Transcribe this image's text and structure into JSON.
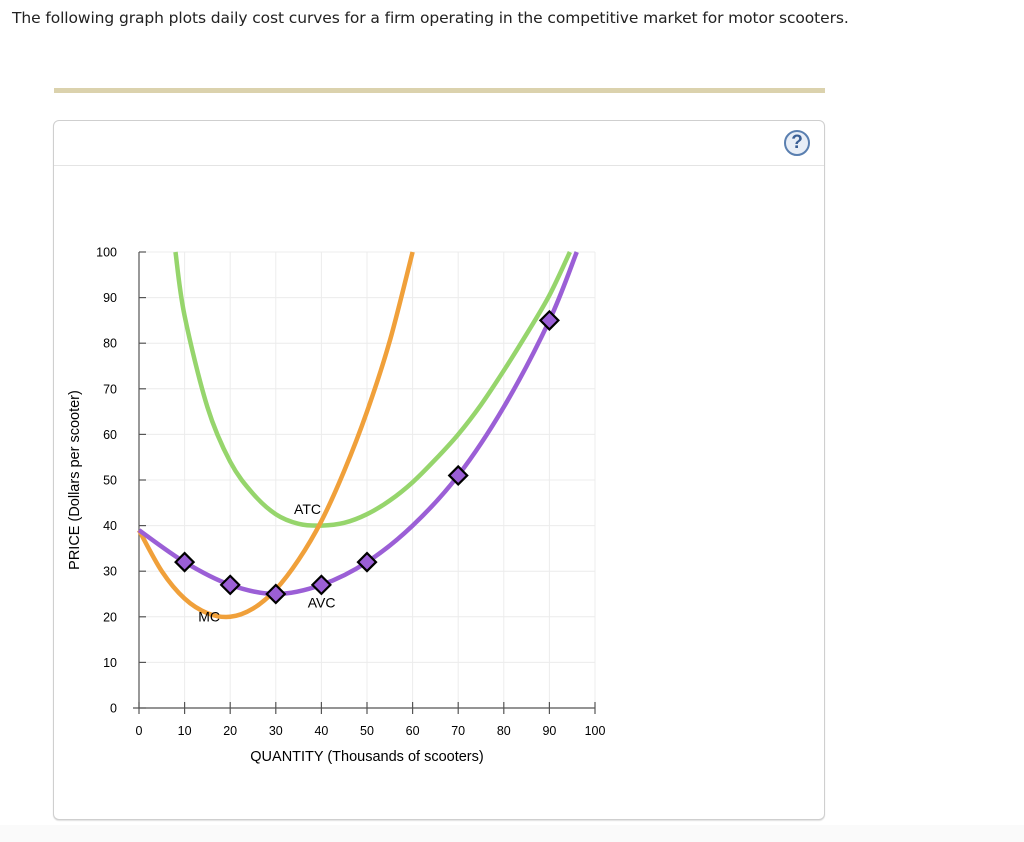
{
  "intro_text": "The following graph plots daily cost curves for a firm operating in the competitive market for motor scooters.",
  "help_button": {
    "label": "?",
    "icon": "question-circle-icon"
  },
  "colors": {
    "divider": "#dbd2ad",
    "atc": "#96d56c",
    "mc": "#f0a03a",
    "avc": "#9b5fd6",
    "marker_fill": "#9b5fd6",
    "marker_stroke": "#000000",
    "grid": "#ececec",
    "axis": "#555555"
  },
  "chart_data": {
    "type": "line",
    "title": "",
    "xlabel": "QUANTITY (Thousands of scooters)",
    "ylabel": "PRICE (Dollars per scooter)",
    "xlim": [
      0,
      100
    ],
    "ylim": [
      0,
      100
    ],
    "xticks": [
      0,
      10,
      20,
      30,
      40,
      50,
      60,
      70,
      80,
      90,
      100
    ],
    "yticks": [
      0,
      10,
      20,
      30,
      40,
      50,
      60,
      70,
      80,
      90,
      100
    ],
    "grid": true,
    "series": [
      {
        "name": "ATC",
        "label_pos": {
          "x": 34,
          "y": 42.5
        },
        "points": [
          [
            8,
            100
          ],
          [
            10,
            86
          ],
          [
            15,
            66
          ],
          [
            20,
            54
          ],
          [
            25,
            47
          ],
          [
            30,
            42.5
          ],
          [
            35,
            40.4
          ],
          [
            40,
            40
          ],
          [
            45,
            40.6
          ],
          [
            50,
            42.5
          ],
          [
            55,
            45.5
          ],
          [
            60,
            49.5
          ],
          [
            65,
            54.5
          ],
          [
            70,
            60
          ],
          [
            75,
            66.5
          ],
          [
            80,
            74
          ],
          [
            85,
            82
          ],
          [
            90,
            90.5
          ],
          [
            94.5,
            100
          ]
        ]
      },
      {
        "name": "MC",
        "label_pos": {
          "x": 13,
          "y": 19
        },
        "points": [
          [
            0,
            39
          ],
          [
            5,
            30
          ],
          [
            10,
            24
          ],
          [
            15,
            20.8
          ],
          [
            20,
            20
          ],
          [
            25,
            21.8
          ],
          [
            30,
            26
          ],
          [
            35,
            32.5
          ],
          [
            40,
            41
          ],
          [
            45,
            52
          ],
          [
            50,
            65
          ],
          [
            55,
            80.5
          ],
          [
            60,
            100
          ]
        ]
      },
      {
        "name": "AVC",
        "label_pos": {
          "x": 37,
          "y": 22
        },
        "points": [
          [
            0,
            39
          ],
          [
            10,
            32
          ],
          [
            20,
            27
          ],
          [
            30,
            25
          ],
          [
            40,
            27
          ],
          [
            50,
            32
          ],
          [
            60,
            40
          ],
          [
            70,
            51
          ],
          [
            80,
            66
          ],
          [
            90,
            85
          ],
          [
            96,
            100
          ]
        ],
        "markers": [
          [
            10,
            32
          ],
          [
            20,
            27
          ],
          [
            30,
            25
          ],
          [
            40,
            27
          ],
          [
            50,
            32
          ],
          [
            70,
            51
          ],
          [
            90,
            85
          ]
        ]
      }
    ]
  }
}
